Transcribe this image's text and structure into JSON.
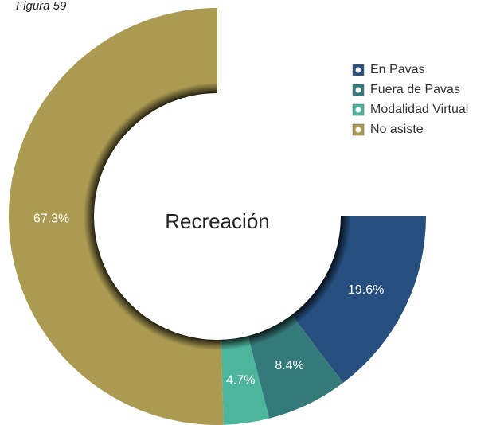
{
  "chart_data": {
    "type": "donut",
    "caption": "Figura 59",
    "center_label": "Recreación",
    "categories": [
      "En Pavas",
      "Fuera de Pavas",
      "Modalidad Virtual",
      "No asiste"
    ],
    "values": [
      19.6,
      8.4,
      4.7,
      67.3
    ],
    "value_labels": [
      "19.6%",
      "8.4%",
      "4.7%",
      "67.3%"
    ],
    "colors": [
      "#264f80",
      "#357a7a",
      "#4cb59b",
      "#ab9a52"
    ],
    "legend": "top-right"
  }
}
